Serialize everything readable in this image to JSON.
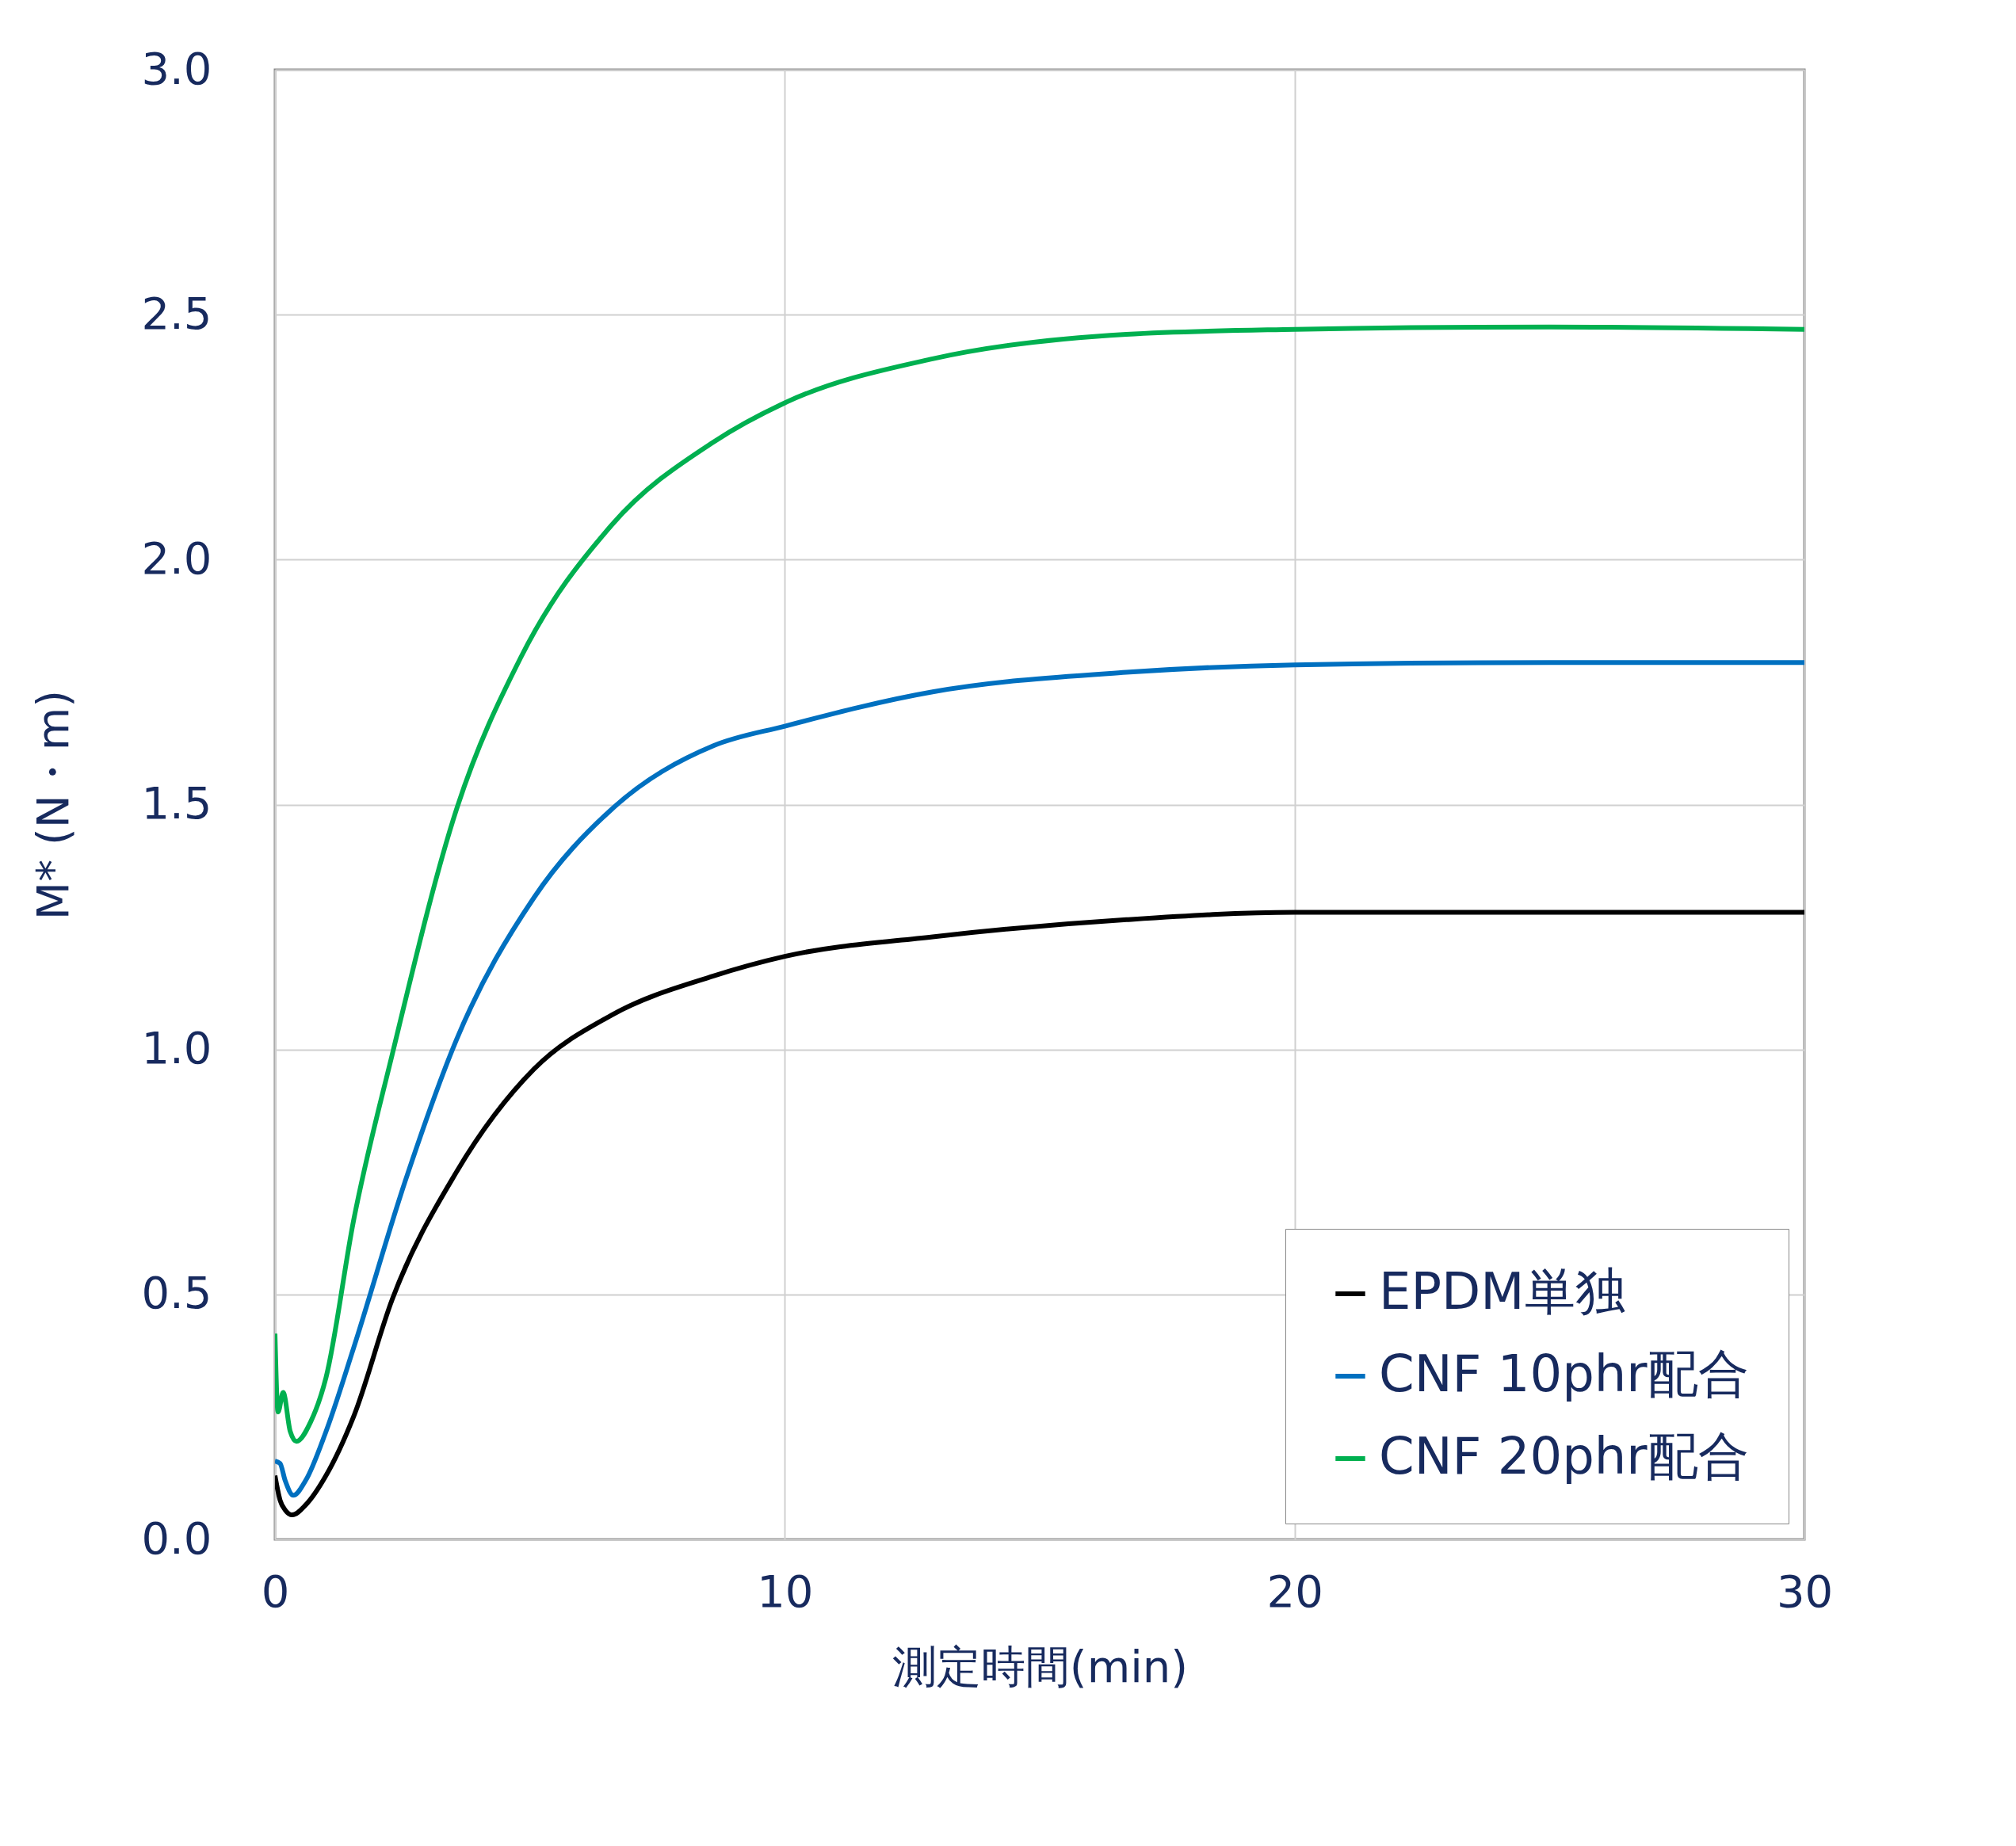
{
  "chart_data": {
    "type": "line",
    "xlabel": "測定時間(min)",
    "ylabel": "M* (N・m)",
    "xlim": [
      0,
      30
    ],
    "xticks": [
      0,
      10,
      20,
      30
    ],
    "ylim": [
      0,
      3.0
    ],
    "yticks": [
      {
        "value": 0,
        "label": "0.0"
      },
      {
        "value": 0.5,
        "label": "0.5"
      },
      {
        "value": 1,
        "label": "1.0"
      },
      {
        "value": 1.5,
        "label": "1.5"
      },
      {
        "value": 2,
        "label": "2.0"
      },
      {
        "value": 2.5,
        "label": "2.5"
      },
      {
        "value": 3,
        "label": "3.0"
      }
    ],
    "grid": true,
    "legend": "bottom right",
    "marker": "none",
    "line_style": "solid",
    "series": [
      {
        "name": "EPDM単独",
        "color": "#000000",
        "x": [
          0,
          0.1,
          0.2,
          0.34,
          0.6,
          1.0,
          1.54,
          2.3,
          3.56,
          5.08,
          6.6,
          8.6,
          10,
          12.9,
          16.7,
          20,
          25,
          30
        ],
        "values": [
          0.13,
          0.08,
          0.06,
          0.05,
          0.07,
          0.13,
          0.25,
          0.49,
          0.75,
          0.96,
          1.07,
          1.15,
          1.19,
          1.23,
          1.265,
          1.28,
          1.28,
          1.28
        ]
      },
      {
        "name": "CNF 10phr配合",
        "color": "#0070c0",
        "x": [
          0,
          0.1,
          0.2,
          0.36,
          0.6,
          1.0,
          1.54,
          2.55,
          3.56,
          5.08,
          6.6,
          8.6,
          10,
          12.9,
          16.7,
          20,
          25,
          30
        ],
        "values": [
          0.16,
          0.155,
          0.12,
          0.09,
          0.12,
          0.22,
          0.39,
          0.73,
          1.02,
          1.31,
          1.49,
          1.62,
          1.66,
          1.73,
          1.77,
          1.785,
          1.79,
          1.79
        ]
      },
      {
        "name": "CNF 20phr配合",
        "color": "#00b050",
        "x": [
          0,
          0.06,
          0.16,
          0.3,
          0.42,
          0.7,
          1.0,
          1.54,
          2.3,
          3.56,
          4.82,
          6.6,
          8.6,
          10,
          12.9,
          16.7,
          20,
          25,
          30
        ],
        "values": [
          0.42,
          0.26,
          0.3,
          0.22,
          0.2,
          0.24,
          0.33,
          0.65,
          0.99,
          1.49,
          1.8,
          2.07,
          2.24,
          2.32,
          2.41,
          2.46,
          2.47,
          2.475,
          2.47
        ]
      }
    ]
  }
}
